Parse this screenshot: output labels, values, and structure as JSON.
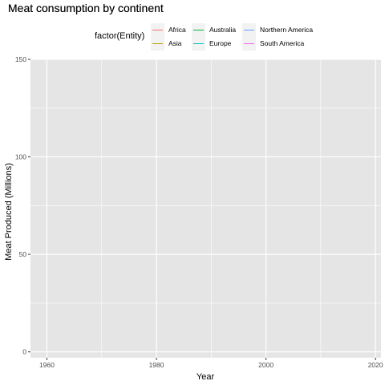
{
  "chart_data": {
    "type": "line",
    "title": "Meat consumption by continent",
    "xlabel": "Year",
    "ylabel": "Meat Produced (Millions)",
    "xlim": [
      1957,
      2021
    ],
    "ylim": [
      -3,
      150
    ],
    "x_ticks": [
      1960,
      1980,
      2000,
      2020
    ],
    "x_minor": [
      1970,
      1990,
      2010
    ],
    "y_ticks": [
      0,
      50,
      100,
      150
    ],
    "y_minor": [
      25,
      75,
      125
    ],
    "grid": true,
    "legend": {
      "title": "factor(Entity)",
      "position": "top",
      "entries": [
        {
          "name": "Africa",
          "color": "#F8766D"
        },
        {
          "name": "Asia",
          "color": "#B79F00"
        },
        {
          "name": "Australia",
          "color": "#00BA38"
        },
        {
          "name": "Europe",
          "color": "#00BFC4"
        },
        {
          "name": "Northern America",
          "color": "#619CFF"
        },
        {
          "name": "South America",
          "color": "#F564E3"
        }
      ]
    },
    "series": [
      {
        "name": "Africa",
        "values": []
      },
      {
        "name": "Asia",
        "values": []
      },
      {
        "name": "Australia",
        "values": []
      },
      {
        "name": "Europe",
        "values": []
      },
      {
        "name": "Northern America",
        "values": []
      },
      {
        "name": "South America",
        "values": []
      }
    ],
    "colors": {
      "panel": "#E5E5E5",
      "grid": "#FFFFFF",
      "tick_text": "#4D4D4D"
    }
  }
}
